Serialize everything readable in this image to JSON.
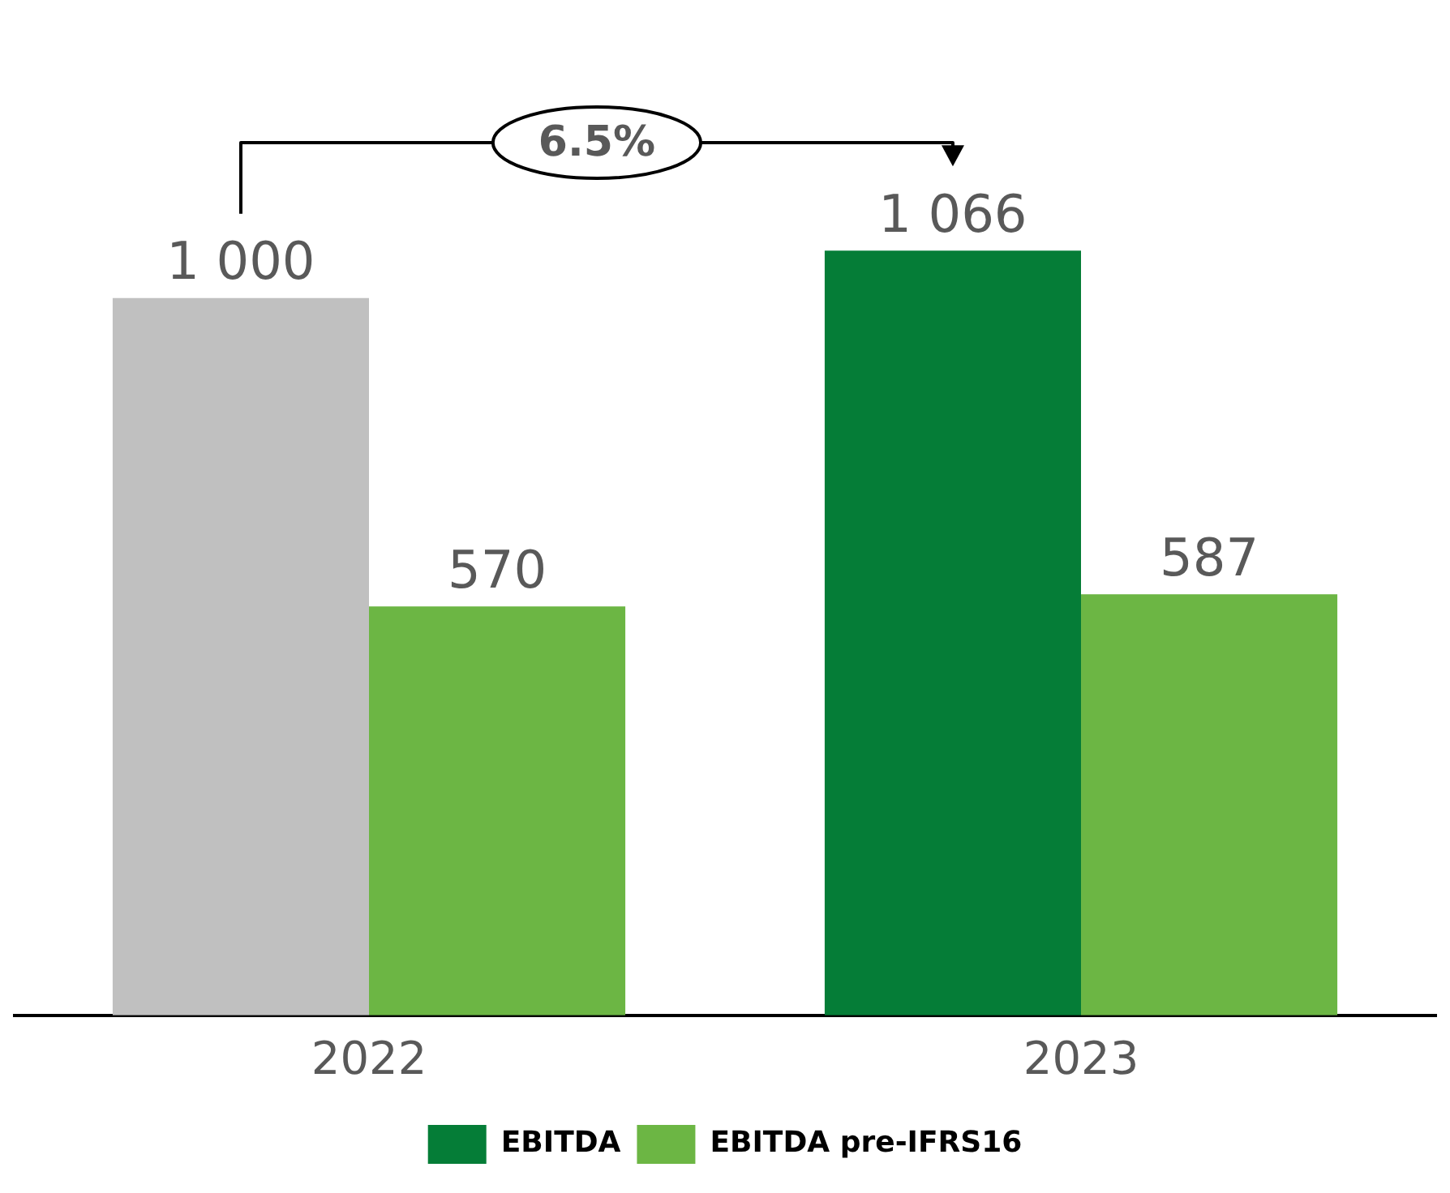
{
  "chart_data": {
    "type": "bar",
    "categories": [
      "2022",
      "2023"
    ],
    "series": [
      {
        "name": "EBITDA",
        "color": "#057d37",
        "colors": [
          "#c0c0c0",
          "#057d37"
        ],
        "values": [
          1000,
          1066
        ],
        "value_labels": [
          "1 000",
          "1 066"
        ]
      },
      {
        "name": "EBITDA pre-IFRS16",
        "color": "#6cb644",
        "values": [
          570,
          587
        ],
        "value_labels": [
          "570",
          "587"
        ]
      }
    ],
    "annotations": [
      "6.5%"
    ],
    "legend": "bottom",
    "grid": false
  }
}
